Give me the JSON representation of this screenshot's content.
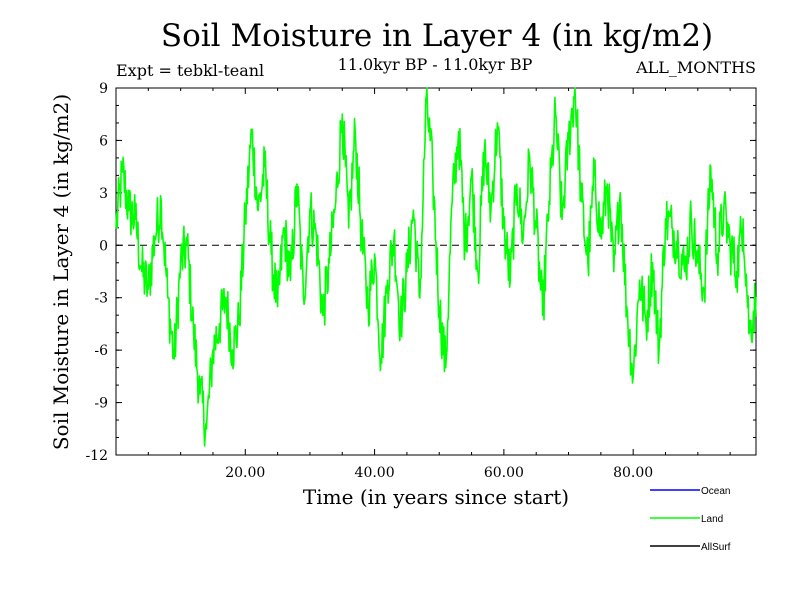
{
  "chart_data": {
    "type": "line",
    "title": "Soil Moisture in Layer 4 (in kg/m2)",
    "experiment": "Expt = tebkl-teanl",
    "period": "11.0kyr BP - 11.0kyr BP",
    "season": "ALL_MONTHS",
    "xlabel": "Time (in years since start)",
    "ylabel": "Soil Moisture in Layer 4 (in kg/m2)",
    "xlim": [
      0,
      99
    ],
    "ylim": [
      -12,
      9
    ],
    "xticks": [
      20,
      40,
      60,
      80
    ],
    "xtick_labels": [
      "20.00",
      "40.00",
      "60.00",
      "80.00"
    ],
    "yticks": [
      -12,
      -9,
      -6,
      -3,
      0,
      3,
      6,
      9
    ],
    "ytick_labels": [
      "-12",
      "-9",
      "-6",
      "-3",
      "0",
      "3",
      "6",
      "9"
    ],
    "zero_line": 0,
    "legend": [
      {
        "name": "Ocean",
        "color": "#0000ff"
      },
      {
        "name": "Land",
        "color": "#00ff00"
      },
      {
        "name": "AllSurf",
        "color": "#000000"
      }
    ],
    "series": [
      {
        "name": "Land",
        "color": "#00ff00",
        "x": [
          0,
          1,
          2,
          3,
          4,
          5,
          6,
          7,
          8,
          9,
          10,
          11,
          12,
          13,
          14,
          15,
          16,
          17,
          18,
          19,
          20,
          21,
          22,
          23,
          24,
          25,
          26,
          27,
          28,
          29,
          30,
          31,
          32,
          33,
          34,
          35,
          36,
          37,
          38,
          39,
          40,
          41,
          42,
          43,
          44,
          45,
          46,
          47,
          48,
          49,
          50,
          51,
          52,
          53,
          54,
          55,
          56,
          57,
          58,
          59,
          60,
          61,
          62,
          63,
          64,
          65,
          66,
          67,
          68,
          69,
          70,
          71,
          72,
          73,
          74,
          75,
          76,
          77,
          78,
          79,
          80,
          81,
          82,
          83,
          84,
          85,
          86,
          87,
          88,
          89,
          90,
          91,
          92,
          93,
          94,
          95,
          96,
          97,
          98,
          99
        ],
        "values": [
          1.0,
          4.2,
          2.0,
          1.5,
          -1.5,
          -2.5,
          0.5,
          2.5,
          -3.0,
          -6.5,
          -1.0,
          0.0,
          -5.0,
          -8.5,
          -10.5,
          -6.0,
          -4.5,
          -3.0,
          -6.0,
          -4.5,
          1.5,
          6.5,
          2.0,
          4.5,
          -0.5,
          -3.5,
          1.0,
          -2.0,
          3.5,
          -3.0,
          2.0,
          0.5,
          -4.0,
          -1.0,
          2.5,
          7.5,
          1.0,
          6.5,
          0.5,
          -3.5,
          -0.5,
          -6.5,
          -2.0,
          0.5,
          -4.5,
          -1.5,
          2.0,
          -3.0,
          8.5,
          4.0,
          -3.5,
          -7.0,
          2.5,
          6.5,
          0.0,
          4.0,
          -1.5,
          5.5,
          2.0,
          7.0,
          1.0,
          -2.0,
          3.5,
          0.5,
          5.0,
          1.0,
          -4.0,
          2.5,
          7.5,
          1.5,
          6.0,
          9.0,
          2.5,
          -1.0,
          4.0,
          0.5,
          3.5,
          -1.5,
          3.0,
          -3.5,
          -7.5,
          -2.0,
          -4.5,
          -1.0,
          -6.0,
          1.5,
          1.0,
          0.0,
          -1.5,
          1.5,
          -1.0,
          -2.5,
          4.5,
          -0.5,
          2.0,
          0.0,
          -1.5,
          1.5,
          -5.0,
          -3.0
        ]
      }
    ]
  }
}
